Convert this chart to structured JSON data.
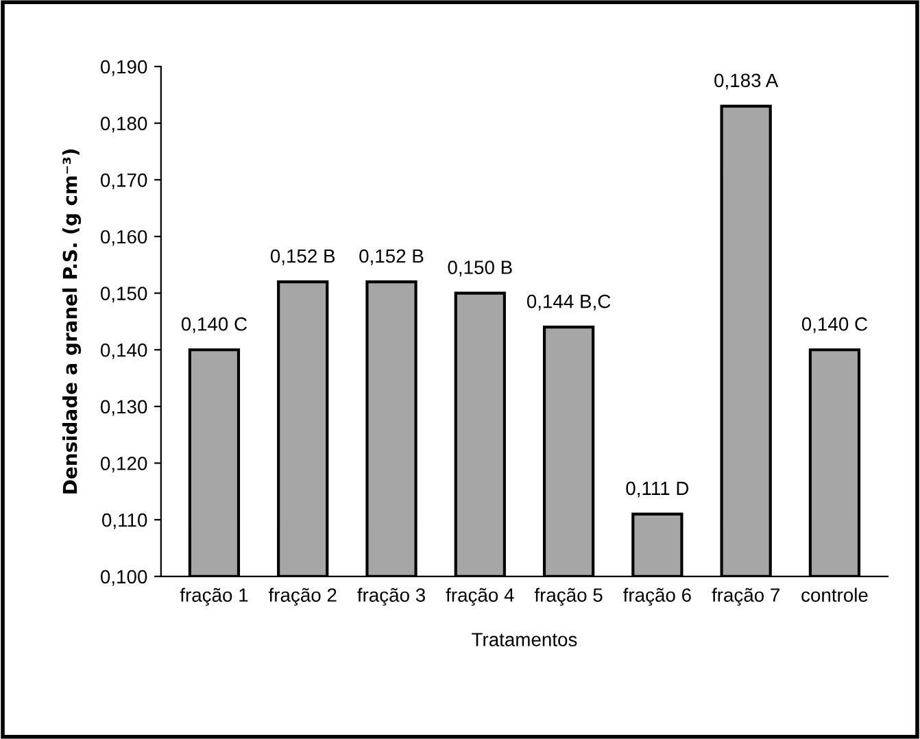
{
  "chart_data": {
    "type": "bar",
    "xlabel": "Tratamentos",
    "ylabel": "Densidade a granel P.S. (g cm⁻³)",
    "categories": [
      "fração 1",
      "fração 2",
      "fração 3",
      "fração 4",
      "fração 5",
      "fração 6",
      "fração 7",
      "controle"
    ],
    "values": [
      0.14,
      0.152,
      0.152,
      0.15,
      0.144,
      0.111,
      0.183,
      0.14
    ],
    "value_labels": [
      "0,140 C",
      "0,152 B",
      "0,152 B",
      "0,150 B",
      "0,144 B,C",
      "0,111 D",
      "0,183 A",
      "0,140 C"
    ],
    "color": "#a6a6a6",
    "ylim": [
      0.1,
      0.19
    ],
    "yticks": [
      {
        "value": 0.1,
        "label": "0,100"
      },
      {
        "value": 0.11,
        "label": "0,110"
      },
      {
        "value": 0.12,
        "label": "0,120"
      },
      {
        "value": 0.13,
        "label": "0,130"
      },
      {
        "value": 0.14,
        "label": "0,140"
      },
      {
        "value": 0.15,
        "label": "0,150"
      },
      {
        "value": 0.16,
        "label": "0,160"
      },
      {
        "value": 0.17,
        "label": "0,170"
      },
      {
        "value": 0.18,
        "label": "0,180"
      },
      {
        "value": 0.19,
        "label": "0,190"
      }
    ],
    "grid": false,
    "legend": false
  }
}
